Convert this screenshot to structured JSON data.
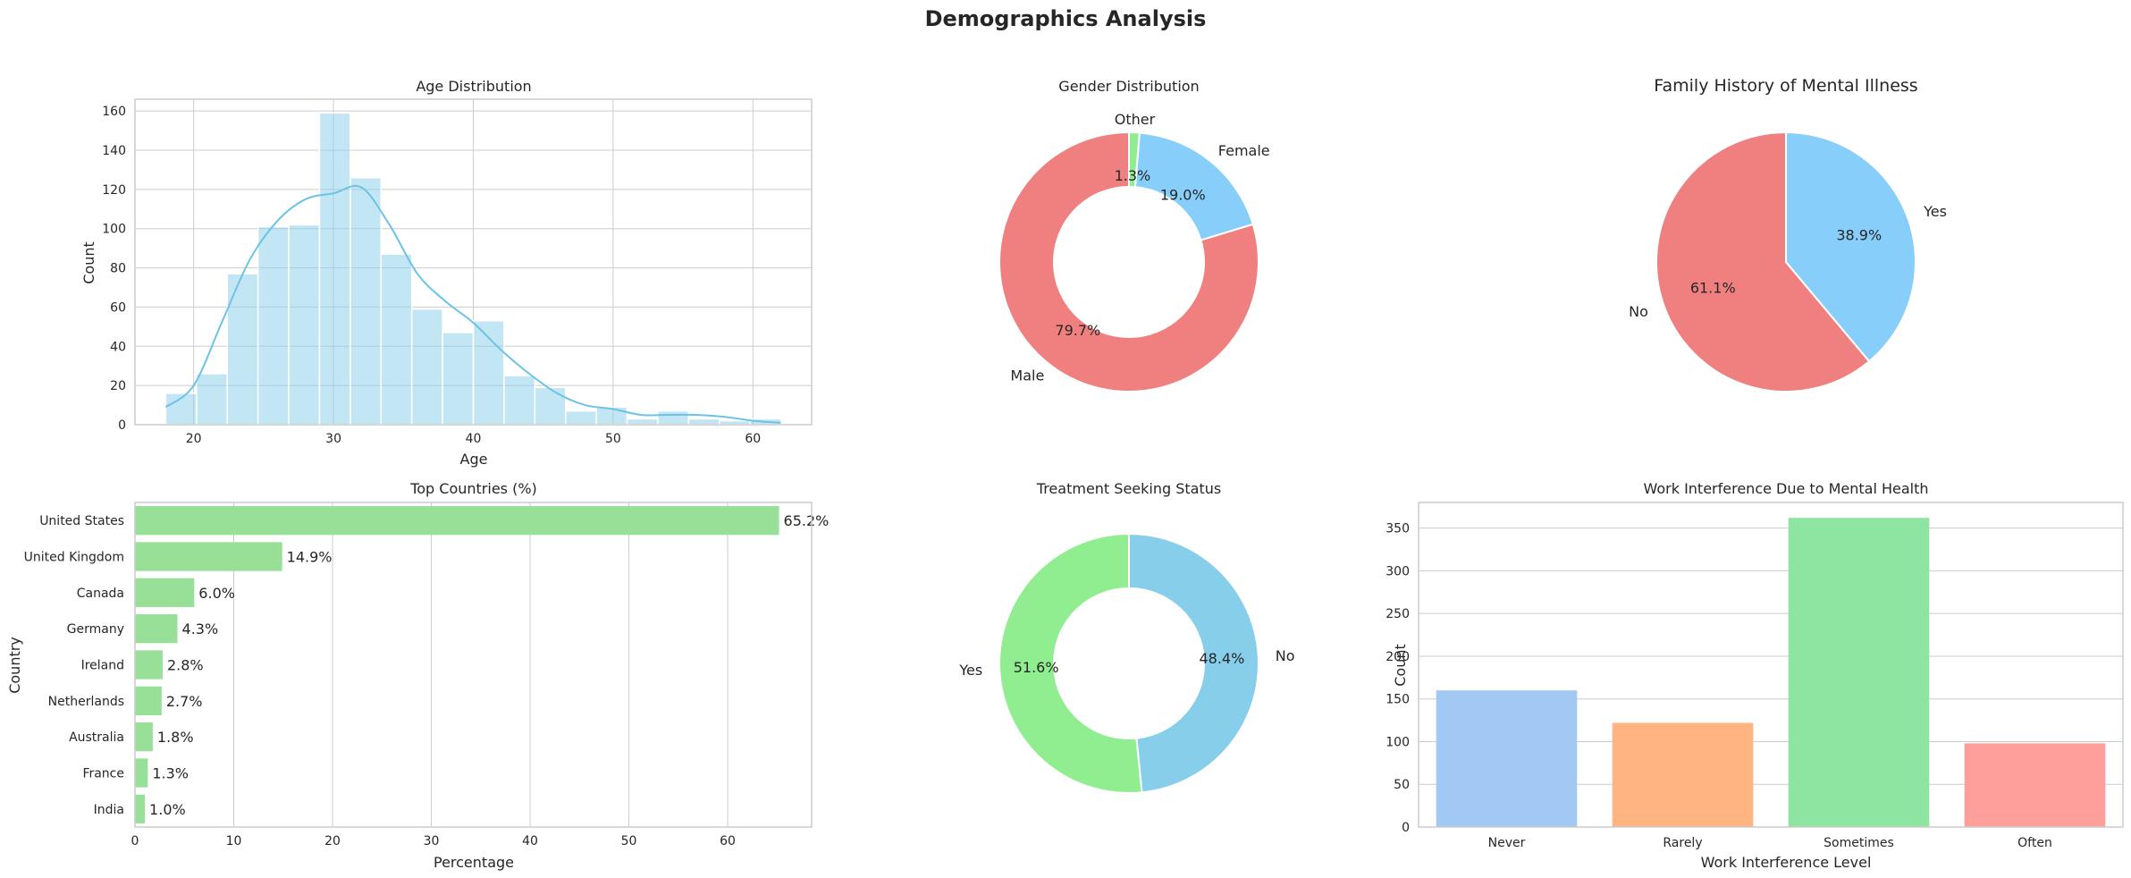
{
  "figure": {
    "title": "Demographics Analysis"
  },
  "colors": {
    "grid": "#cccccc",
    "frame": "#cccccc",
    "hist": "#87ceeb",
    "kde": "#6cc3e6",
    "pie_male": "#f08080",
    "pie_female": "#87cefa",
    "pie_other": "#90ee90",
    "pie_no": "#f08080",
    "pie_yes": "#87cefa",
    "treat_yes": "#90ee90",
    "treat_no": "#87ceeb",
    "country_bar": "#98df98",
    "work_bars": [
      "#a1c9f4",
      "#ffb482",
      "#8de5a1",
      "#ff9f9b"
    ]
  },
  "chart_data": [
    {
      "id": "age",
      "type": "bar",
      "title": "Age Distribution",
      "xlabel": "Age",
      "ylabel": "Count",
      "xlim": [
        15.8,
        64.2
      ],
      "ylim": [
        0,
        166
      ],
      "xticks": [
        20,
        30,
        40,
        50,
        60
      ],
      "yticks": [
        0,
        20,
        40,
        60,
        80,
        100,
        120,
        140,
        160
      ],
      "bin_start": 18,
      "bin_width": 2.2,
      "values": [
        16,
        26,
        77,
        101,
        102,
        159,
        126,
        87,
        59,
        47,
        53,
        25,
        19,
        7,
        9,
        3,
        7,
        3,
        2,
        3
      ],
      "kde": {
        "x": [
          18,
          20,
          22,
          24,
          26,
          28,
          30,
          32,
          34,
          36,
          38,
          40,
          42,
          44,
          46,
          48,
          50,
          52,
          54,
          56,
          58,
          60,
          62
        ],
        "y": [
          9,
          20,
          52,
          84,
          104,
          115,
          118,
          121,
          102,
          77,
          63,
          52,
          38,
          26,
          16,
          10,
          8,
          5,
          5,
          5,
          4,
          2,
          1
        ]
      },
      "grid": true
    },
    {
      "id": "gender",
      "type": "pie",
      "title": "Gender Distribution",
      "donut": true,
      "slices": [
        {
          "label": "Male",
          "value": 79.7,
          "pct": "79.7%"
        },
        {
          "label": "Female",
          "value": 19.0,
          "pct": "19.0%"
        },
        {
          "label": "Other",
          "value": 1.3,
          "pct": "1.3%"
        }
      ]
    },
    {
      "id": "family",
      "type": "pie",
      "title": "Family History of Mental Illness",
      "donut": false,
      "slices": [
        {
          "label": "No",
          "value": 61.1,
          "pct": "61.1%"
        },
        {
          "label": "Yes",
          "value": 38.9,
          "pct": "38.9%"
        }
      ]
    },
    {
      "id": "countries",
      "type": "bar",
      "orientation": "horizontal",
      "title": "Top Countries (%)",
      "xlabel": "Percentage",
      "ylabel": "Country",
      "xlim": [
        0,
        68.5
      ],
      "xticks": [
        0,
        10,
        20,
        30,
        40,
        50,
        60
      ],
      "categories": [
        "United States",
        "United Kingdom",
        "Canada",
        "Germany",
        "Ireland",
        "Netherlands",
        "Australia",
        "France",
        "India"
      ],
      "values": [
        65.2,
        14.9,
        6.0,
        4.3,
        2.8,
        2.7,
        1.8,
        1.3,
        1.0
      ],
      "value_labels": [
        "65.2%",
        "14.9%",
        "6.0%",
        "4.3%",
        "2.8%",
        "2.7%",
        "1.8%",
        "1.3%",
        "1.0%"
      ],
      "grid": true
    },
    {
      "id": "treatment",
      "type": "pie",
      "title": "Treatment Seeking Status",
      "donut": true,
      "slices": [
        {
          "label": "Yes",
          "value": 51.6,
          "pct": "51.6%"
        },
        {
          "label": "No",
          "value": 48.4,
          "pct": "48.4%"
        }
      ]
    },
    {
      "id": "work",
      "type": "bar",
      "title": "Work Interference Due to Mental Health",
      "xlabel": "Work Interference Level",
      "ylabel": "Count",
      "ylim": [
        0,
        380
      ],
      "yticks": [
        0,
        50,
        100,
        150,
        200,
        250,
        300,
        350
      ],
      "categories": [
        "Never",
        "Rarely",
        "Sometimes",
        "Often"
      ],
      "values": [
        160,
        122,
        362,
        98
      ],
      "grid": true
    }
  ]
}
